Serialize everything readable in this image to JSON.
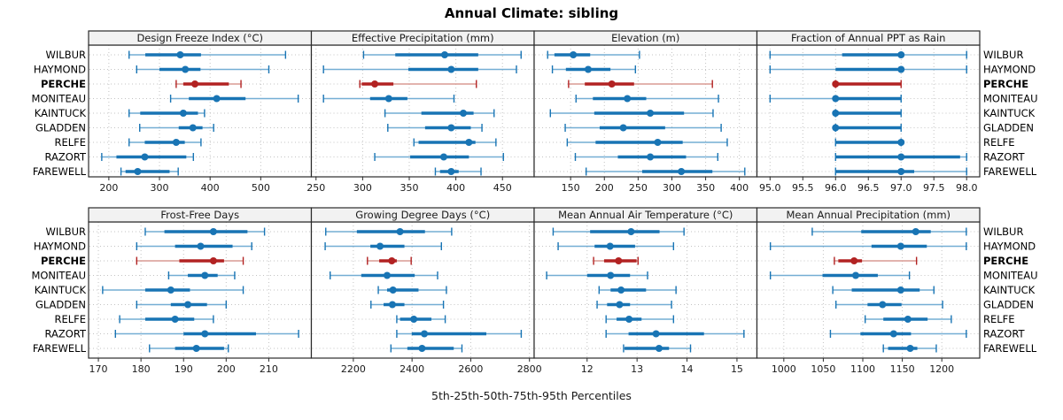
{
  "title": "Annual Climate: sibling",
  "caption": "5th-25th-50th-75th-95th Percentiles",
  "colors": {
    "series_blue": "#1874b4",
    "series_blue_light": "#74aed4",
    "highlight_red": "#b22222",
    "highlight_red_light": "#d99a93",
    "grid": "#c3c3c3",
    "strip_bg": "#f2f2f2",
    "panel_border": "#2b2b2b",
    "text": "#1a1a1a"
  },
  "chart_data": {
    "type": "interval-dotplot-trellis",
    "percentiles": [
      5,
      25,
      50,
      75,
      95
    ],
    "sites": [
      "WILBUR",
      "HAYMOND",
      "PERCHE",
      "MONITEAU",
      "KAINTUCK",
      "GLADDEN",
      "RELFE",
      "RAZORT",
      "FAREWELL"
    ],
    "highlight_site": "PERCHE",
    "legend_position": "none",
    "grid": "dotted",
    "panels": [
      {
        "title": "Design Freeze Index (°C)",
        "xlim": [
          160,
          600
        ],
        "ticks": [
          200,
          300,
          400,
          500
        ],
        "tick_labels": [
          "200",
          "300",
          "400",
          "500"
        ],
        "series": [
          [
            240,
            272,
            341,
            382,
            549
          ],
          [
            255,
            300,
            351,
            381,
            516
          ],
          [
            333,
            347,
            370,
            437,
            461
          ],
          [
            322,
            358,
            413,
            470,
            574
          ],
          [
            240,
            262,
            347,
            376,
            389
          ],
          [
            261,
            338,
            366,
            385,
            407
          ],
          [
            240,
            271,
            333,
            350,
            382
          ],
          [
            186,
            215,
            271,
            353,
            367
          ],
          [
            224,
            233,
            257,
            320,
            337
          ]
        ]
      },
      {
        "title": "Effective Precipitation (mm)",
        "xlim": [
          245,
          484
        ],
        "ticks": [
          250,
          300,
          350,
          400,
          450
        ],
        "tick_labels": [
          "250",
          "300",
          "350",
          "400",
          "450"
        ],
        "series": [
          [
            301,
            335,
            388,
            424,
            470
          ],
          [
            258,
            349,
            395,
            424,
            465
          ],
          [
            297,
            299,
            313,
            333,
            422
          ],
          [
            258,
            308,
            328,
            348,
            398
          ],
          [
            324,
            363,
            408,
            419,
            441
          ],
          [
            327,
            367,
            395,
            416,
            428
          ],
          [
            355,
            360,
            414,
            421,
            443
          ],
          [
            313,
            351,
            387,
            414,
            451
          ],
          [
            378,
            383,
            395,
            403,
            427
          ]
        ]
      },
      {
        "title": "Elevation (m)",
        "xlim": [
          96,
          426
        ],
        "ticks": [
          150,
          200,
          250,
          300,
          350,
          400
        ],
        "tick_labels": [
          "150",
          "200",
          "250",
          "300",
          "350",
          "400"
        ],
        "series": [
          [
            116,
            126,
            154,
            179,
            252
          ],
          [
            123,
            143,
            176,
            209,
            246
          ],
          [
            147,
            171,
            211,
            244,
            360
          ],
          [
            158,
            183,
            234,
            262,
            369
          ],
          [
            120,
            185,
            268,
            318,
            361
          ],
          [
            142,
            193,
            228,
            290,
            373
          ],
          [
            145,
            187,
            279,
            316,
            382
          ],
          [
            157,
            220,
            268,
            321,
            368
          ],
          [
            173,
            256,
            314,
            360,
            408
          ]
        ]
      },
      {
        "title": "Fraction of Annual PPT as Rain",
        "xlim": [
          94.8,
          98.2
        ],
        "ticks": [
          95.0,
          95.5,
          96.0,
          96.5,
          97.0,
          97.5,
          98.0
        ],
        "tick_labels": [
          "95.0",
          "95.5",
          "96.0",
          "96.5",
          "97.0",
          "97.5",
          "98.0"
        ],
        "series": [
          [
            95,
            96.1,
            97,
            97,
            98
          ],
          [
            95,
            96,
            97,
            97,
            98
          ],
          [
            96,
            96,
            96,
            97,
            97
          ],
          [
            95,
            96,
            96,
            97,
            97
          ],
          [
            96,
            96,
            96,
            97,
            97
          ],
          [
            96,
            96,
            96,
            97,
            97
          ],
          [
            96,
            96,
            97,
            97,
            97
          ],
          [
            96,
            96,
            97,
            97.9,
            98
          ],
          [
            96,
            96,
            97,
            97.2,
            98
          ]
        ]
      },
      {
        "title": "Frost-Free Days",
        "xlim": [
          167.7,
          220
        ],
        "ticks": [
          170,
          180,
          190,
          200,
          210
        ],
        "tick_labels": [
          "170",
          "180",
          "190",
          "200",
          "210"
        ],
        "series": [
          [
            181,
            185.5,
            197,
            205,
            209
          ],
          [
            179,
            188,
            194,
            201.5,
            206
          ],
          [
            179,
            189,
            197,
            199.5,
            204
          ],
          [
            186.5,
            191,
            195,
            198,
            202
          ],
          [
            171,
            181,
            187,
            191.5,
            204
          ],
          [
            179,
            187,
            191,
            195.5,
            200
          ],
          [
            175,
            181,
            188,
            192.5,
            197
          ],
          [
            174,
            190,
            195,
            207,
            217
          ],
          [
            182,
            188,
            193,
            199.5,
            200.5
          ]
        ]
      },
      {
        "title": "Growing Degree Days (°C)",
        "xlim": [
          2057,
          2816
        ],
        "ticks": [
          2200,
          2400,
          2600,
          2800
        ],
        "tick_labels": [
          "2200",
          "2400",
          "2600",
          "2800"
        ],
        "series": [
          [
            2106,
            2212,
            2359,
            2444,
            2535
          ],
          [
            2104,
            2258,
            2291,
            2374,
            2500
          ],
          [
            2248,
            2288,
            2331,
            2348,
            2397
          ],
          [
            2121,
            2227,
            2315,
            2409,
            2487
          ],
          [
            2285,
            2315,
            2335,
            2422,
            2517
          ],
          [
            2260,
            2303,
            2333,
            2374,
            2507
          ],
          [
            2348,
            2359,
            2406,
            2466,
            2513
          ],
          [
            2348,
            2399,
            2442,
            2653,
            2772
          ],
          [
            2328,
            2384,
            2434,
            2542,
            2570
          ]
        ]
      },
      {
        "title": "Mean Annual Air Temperature (°C)",
        "xlim": [
          10.94,
          15.4
        ],
        "ticks": [
          12,
          13,
          14,
          15
        ],
        "tick_labels": [
          "12",
          "13",
          "14",
          "15"
        ],
        "series": [
          [
            11.32,
            12.06,
            12.88,
            13.45,
            13.94
          ],
          [
            11.42,
            12.15,
            12.46,
            12.96,
            13.73
          ],
          [
            12.13,
            12.34,
            12.63,
            12.99,
            13.02
          ],
          [
            11.19,
            12.0,
            12.47,
            12.86,
            13.21
          ],
          [
            12.24,
            12.47,
            12.68,
            13.18,
            13.78
          ],
          [
            12.2,
            12.4,
            12.65,
            12.86,
            13.69
          ],
          [
            12.38,
            12.59,
            12.84,
            13.09,
            13.73
          ],
          [
            12.38,
            12.83,
            13.38,
            14.34,
            15.14
          ],
          [
            12.73,
            12.75,
            13.44,
            13.64,
            14.07
          ]
        ]
      },
      {
        "title": "Mean Annual Precipitation (mm)",
        "xlim": [
          966,
          1248
        ],
        "ticks": [
          1000,
          1050,
          1100,
          1150,
          1200
        ],
        "tick_labels": [
          "1000",
          "1050",
          "1100",
          "1150",
          "1200"
        ],
        "series": [
          [
            1036,
            1098,
            1167,
            1186,
            1231
          ],
          [
            983,
            1111,
            1148,
            1181,
            1231
          ],
          [
            1064,
            1069,
            1089,
            1099,
            1168
          ],
          [
            983,
            1049,
            1091,
            1119,
            1159
          ],
          [
            1062,
            1086,
            1148,
            1172,
            1190
          ],
          [
            1066,
            1106,
            1125,
            1149,
            1201
          ],
          [
            1103,
            1126,
            1157,
            1182,
            1212
          ],
          [
            1059,
            1097,
            1139,
            1161,
            1231
          ],
          [
            1126,
            1132,
            1160,
            1169,
            1193
          ]
        ]
      }
    ]
  }
}
